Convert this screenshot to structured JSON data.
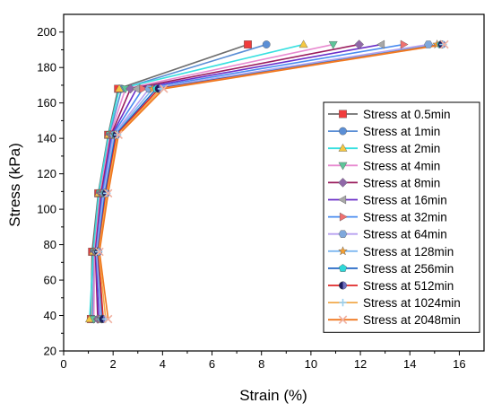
{
  "chart_data": {
    "type": "line",
    "title": "",
    "xlabel": "Strain (%)",
    "ylabel": "Stress (kPa)",
    "xlim": [
      0,
      17
    ],
    "ylim": [
      20,
      210
    ],
    "xticks": [
      0,
      2,
      4,
      6,
      8,
      10,
      12,
      14,
      16
    ],
    "yticks": [
      20,
      40,
      60,
      80,
      100,
      120,
      140,
      160,
      180,
      200
    ],
    "grid": false,
    "legend_position": "right",
    "y": [
      38,
      76,
      109,
      142,
      168,
      193
    ],
    "series": [
      {
        "name": "Stress at 0.5min",
        "color": "#f03c3c",
        "line_color": "#6e6e6e",
        "marker": "square",
        "x": [
          1.1,
          1.15,
          1.4,
          1.8,
          2.2,
          7.45
        ]
      },
      {
        "name": "Stress at 1min",
        "color": "#5b8fd6",
        "line_color": "#5b8fd6",
        "marker": "circle",
        "x": [
          1.18,
          1.22,
          1.45,
          1.85,
          2.35,
          8.2
        ]
      },
      {
        "name": "Stress at 2min",
        "color": "#f5c842",
        "line_color": "#38e0e0",
        "marker": "triangle-up",
        "x": [
          1.05,
          1.2,
          1.42,
          1.82,
          2.25,
          9.7
        ]
      },
      {
        "name": "Stress at 4min",
        "color": "#5fc59a",
        "line_color": "#e88ad0",
        "marker": "triangle-down",
        "x": [
          1.22,
          1.25,
          1.48,
          1.88,
          2.5,
          10.9
        ]
      },
      {
        "name": "Stress at 8min",
        "color": "#9068a8",
        "line_color": "#9a1c5e",
        "marker": "diamond",
        "x": [
          1.38,
          1.28,
          1.52,
          1.92,
          2.7,
          11.95
        ]
      },
      {
        "name": "Stress at 16min",
        "color": "#a8a8a8",
        "line_color": "#6a2ec8",
        "marker": "triangle-left",
        "x": [
          1.42,
          1.3,
          1.55,
          1.95,
          2.95,
          12.85
        ]
      },
      {
        "name": "Stress at 32min",
        "color": "#f07070",
        "line_color": "#4a8cf0",
        "marker": "triangle-right",
        "x": [
          1.5,
          1.32,
          1.58,
          1.98,
          3.2,
          13.75
        ]
      },
      {
        "name": "Stress at 64min",
        "color": "#7fa8dc",
        "line_color": "#b7a0f0",
        "marker": "hexagon",
        "x": [
          1.52,
          1.34,
          1.62,
          2.02,
          3.45,
          14.75
        ]
      },
      {
        "name": "Stress at 128min",
        "color": "#f5a033",
        "line_color": "#7fb8f0",
        "marker": "star",
        "x": [
          1.55,
          1.36,
          1.65,
          2.06,
          3.6,
          15.1
        ]
      },
      {
        "name": "Stress at 256min",
        "color": "#2ed8d8",
        "line_color": "#1f63c4",
        "marker": "pentagon",
        "x": [
          1.58,
          1.38,
          1.68,
          2.1,
          3.75,
          15.25
        ]
      },
      {
        "name": "Stress at 512min",
        "color": "#1c1c60",
        "line_color": "#e02828",
        "marker": "circle-half",
        "x": [
          1.6,
          1.4,
          1.72,
          2.14,
          3.85,
          15.3
        ]
      },
      {
        "name": "Stress at 1024min",
        "color": "#9ad0f0",
        "line_color": "#f2a94a",
        "marker": "plus",
        "x": [
          1.7,
          1.42,
          1.75,
          2.18,
          3.95,
          15.35
        ]
      },
      {
        "name": "Stress at 2048min",
        "color": "#f0b0a0",
        "line_color": "#f07820",
        "marker": "x",
        "x": [
          1.8,
          1.45,
          1.8,
          2.22,
          4.05,
          15.4
        ]
      }
    ]
  }
}
